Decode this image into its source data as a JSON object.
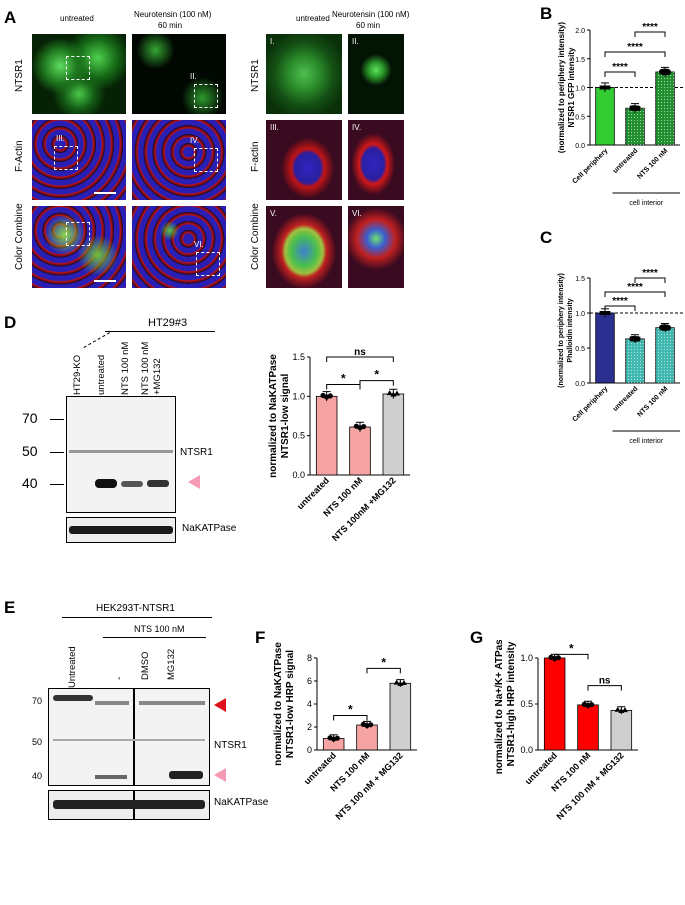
{
  "panels": {
    "A": "A",
    "B": "B",
    "C": "C",
    "D": "D",
    "E": "E",
    "F": "F",
    "G": "G"
  },
  "panelA": {
    "col_untreated": "untreated",
    "col_nts_line1": "Neurotensin (100 nM)",
    "col_nts_line2": "60 min",
    "rows": [
      "NTSR1",
      "F-Actin",
      "Color Combine"
    ],
    "zoom_rows": [
      "NTSR1",
      "F-actin",
      "Color Combine"
    ],
    "roi_labels": [
      "II.",
      "III.",
      "IV.",
      "VI."
    ],
    "zoom_labels": [
      "I.",
      "II.",
      "III.",
      "IV.",
      "V.",
      "VI."
    ]
  },
  "panelD": {
    "cell_line": "HT29#3",
    "lanes": [
      "HT29-KO",
      "untreated",
      "NTS 100 nM",
      "NTS 100 nM",
      "+MG132"
    ],
    "mw": [
      "70",
      "50",
      "40"
    ],
    "band_label": "NTSR1",
    "loading": "NaKATPase"
  },
  "panelE": {
    "cell_line": "HEK293T-NTSR1",
    "treatment": "NTS 100 nM",
    "lanes": [
      "Untreated",
      "-",
      "DMSO",
      "MG132"
    ],
    "mw": [
      "70",
      "50",
      "40"
    ],
    "band_label": "NTSR1",
    "loading": "NaKATPase"
  },
  "colors": {
    "green": "#33cc33",
    "green_dark": "#1f8f2e",
    "navy": "#2b2f8f",
    "teal": "#3fb8b0",
    "salmon": "#f5a3a3",
    "grey": "#cfcfcf",
    "red": "#ff0000",
    "pink": "#f49ab3",
    "red_arrow": "#e0101a"
  },
  "chart_data": [
    {
      "id": "B",
      "type": "bar",
      "categories": [
        "Cell periphery",
        "untreated",
        "NTS 100 nM"
      ],
      "values": [
        1.0,
        0.64,
        1.27
      ],
      "ylabel": "NTSR1 GFP intensity (normalized to periphery intensity)",
      "ylim": [
        0,
        2.0
      ],
      "yticks": [
        "0.0",
        "0.5",
        "1.0",
        "1.5",
        "2.0"
      ],
      "group_label": "cell interior",
      "dashed_line": 1.0,
      "significance": [
        {
          "pair": [
            0,
            1
          ],
          "label": "****"
        },
        {
          "pair": [
            0,
            2
          ],
          "label": "****"
        },
        {
          "pair": [
            1,
            2
          ],
          "label": "****"
        }
      ]
    },
    {
      "id": "C",
      "type": "bar",
      "categories": [
        "Cell periphery",
        "untreated",
        "NTS 100 nM"
      ],
      "values": [
        1.0,
        0.63,
        0.79
      ],
      "ylabel": "Phalloidin intensity (normalized to periphery intensity)",
      "ylim": [
        0,
        1.5
      ],
      "yticks": [
        "0.0",
        "0.5",
        "1.0",
        "1.5"
      ],
      "group_label": "cell interior",
      "dashed_line": 1.0,
      "significance": [
        {
          "pair": [
            0,
            1
          ],
          "label": "****"
        },
        {
          "pair": [
            0,
            2
          ],
          "label": "****"
        },
        {
          "pair": [
            1,
            2
          ],
          "label": "****"
        }
      ]
    },
    {
      "id": "D",
      "type": "bar",
      "categories": [
        "untreated",
        "NTS 100 nM",
        "NTS 100nM +MG132"
      ],
      "values": [
        1.0,
        0.61,
        1.03
      ],
      "ylabel": "NTSR1-low signal normalized to NaKATPase",
      "ylim": [
        0,
        1.5
      ],
      "yticks": [
        "0.0",
        "0.5",
        "1.0",
        "1.5"
      ],
      "significance": [
        {
          "pair": [
            0,
            1
          ],
          "label": "*"
        },
        {
          "pair": [
            1,
            2
          ],
          "label": "*"
        },
        {
          "pair": [
            0,
            2
          ],
          "label": "ns"
        }
      ]
    },
    {
      "id": "F",
      "type": "bar",
      "categories": [
        "untreated",
        "NTS 100 nM",
        "NTS 100 nM + MG132"
      ],
      "values": [
        1.0,
        2.17,
        5.8
      ],
      "ylabel": "NTSR1-low HRP signal normalized to NaKATPase",
      "ylim": [
        0,
        8
      ],
      "yticks": [
        "0",
        "2",
        "4",
        "6",
        "8"
      ],
      "significance": [
        {
          "pair": [
            0,
            1
          ],
          "label": "*"
        },
        {
          "pair": [
            1,
            2
          ],
          "label": "*"
        }
      ]
    },
    {
      "id": "G",
      "type": "bar",
      "categories": [
        "untreated",
        "NTS 100 nM",
        "NTS 100 nM + MG132"
      ],
      "values": [
        1.0,
        0.49,
        0.43
      ],
      "ylabel": "NTSR1-high HRP intensity normalized to Na+/K+ ATPase",
      "ylim": [
        0,
        1.0
      ],
      "yticks": [
        "0.0",
        "0.5",
        "1.0"
      ],
      "significance": [
        {
          "pair": [
            0,
            1
          ],
          "label": "*"
        },
        {
          "pair": [
            1,
            2
          ],
          "label": "ns"
        }
      ]
    }
  ]
}
